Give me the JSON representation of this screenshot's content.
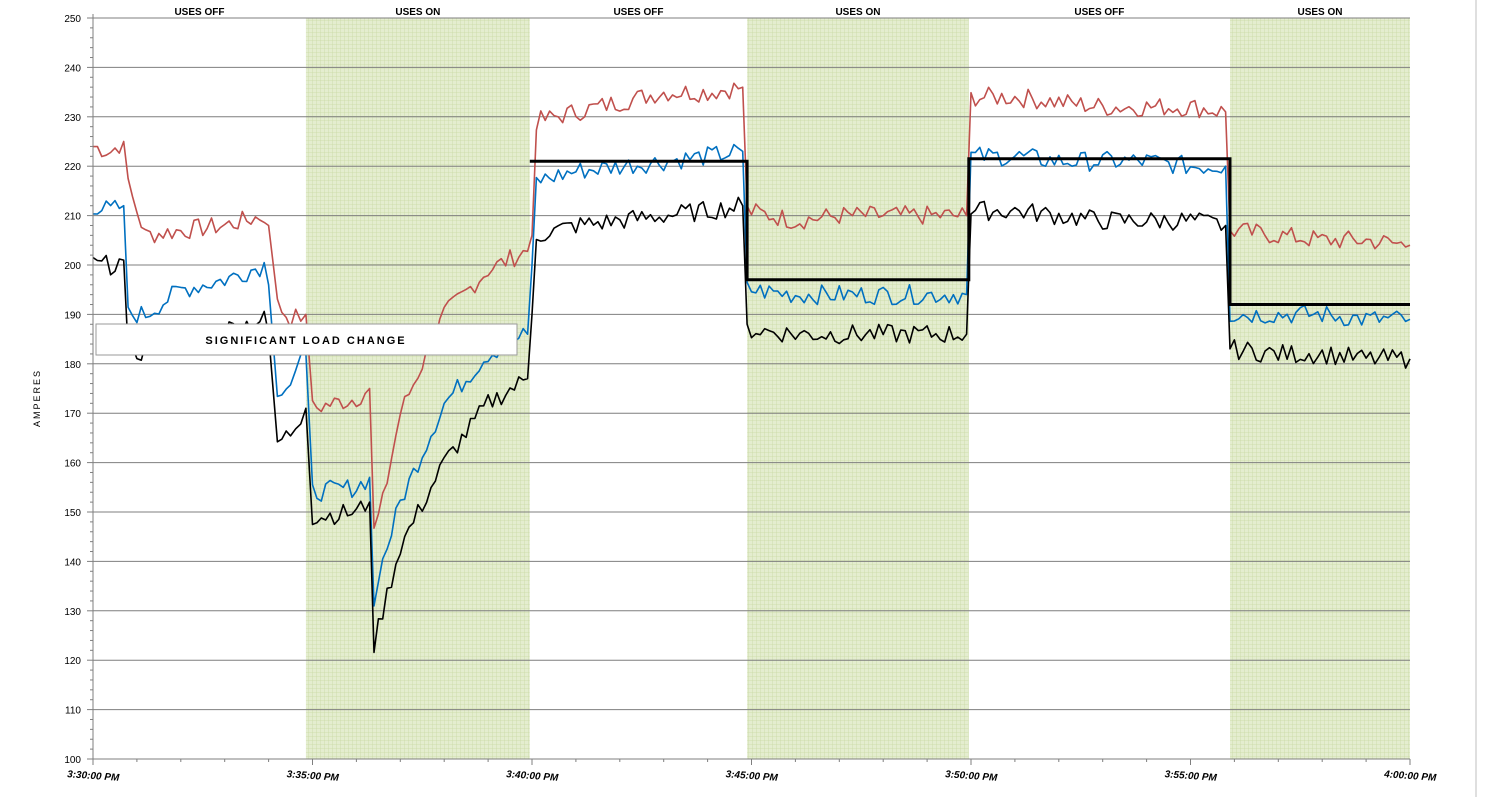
{
  "chart_data": {
    "type": "line",
    "title": "",
    "ylabel": "AMPERES",
    "xlabel": "",
    "ylim": [
      100,
      250
    ],
    "xlim_min": [
      0,
      30
    ],
    "y_ticks": [
      100,
      110,
      120,
      130,
      140,
      150,
      160,
      170,
      180,
      190,
      200,
      210,
      220,
      230,
      240,
      250
    ],
    "x_ticks": [
      {
        "t": 0,
        "label": "3:30:00 PM"
      },
      {
        "t": 5,
        "label": "3:35:00 PM"
      },
      {
        "t": 10,
        "label": "3:40:00 PM"
      },
      {
        "t": 15,
        "label": "3:45:00 PM"
      },
      {
        "t": 20,
        "label": "3:50:00 PM"
      },
      {
        "t": 25,
        "label": "3:55:00 PM"
      },
      {
        "t": 30,
        "label": "4:00:00 PM"
      }
    ],
    "bands": [
      {
        "start": 0.0,
        "end": 4.85,
        "label": "USES OFF",
        "shaded": false
      },
      {
        "start": 4.85,
        "end": 9.95,
        "label": "USES ON",
        "shaded": true
      },
      {
        "start": 9.95,
        "end": 14.9,
        "label": "USES OFF",
        "shaded": false
      },
      {
        "start": 14.9,
        "end": 19.95,
        "label": "USES ON",
        "shaded": true
      },
      {
        "start": 19.95,
        "end": 25.9,
        "label": "USES OFF",
        "shaded": false
      },
      {
        "start": 25.9,
        "end": 30.0,
        "label": "USES ON",
        "shaded": true
      }
    ],
    "annotation": "SIGNIFICANT LOAD CHANGE",
    "grid": true,
    "colors": {
      "red": "#c0504d",
      "blue": "#0070c0",
      "black": "#000000",
      "shade": "#d7e4bd",
      "avg": "#000000"
    },
    "series": [
      {
        "color": "#c0504d",
        "points": [
          [
            0,
            224
          ],
          [
            0.4,
            223
          ],
          [
            0.7,
            225
          ],
          [
            0.8,
            216
          ],
          [
            1.2,
            206
          ],
          [
            2,
            207
          ],
          [
            3,
            208
          ],
          [
            3.9,
            210
          ],
          [
            4.0,
            208
          ],
          [
            4.2,
            192
          ],
          [
            4.5,
            189
          ],
          [
            4.85,
            190
          ],
          [
            5.0,
            171
          ],
          [
            6.0,
            173
          ],
          [
            6.3,
            175
          ],
          [
            6.4,
            146
          ],
          [
            6.6,
            152
          ],
          [
            7.0,
            170
          ],
          [
            8.0,
            190
          ],
          [
            9.0,
            199
          ],
          [
            9.9,
            203
          ],
          [
            10.0,
            206
          ],
          [
            10.1,
            229
          ],
          [
            11,
            231
          ],
          [
            12,
            233
          ],
          [
            13,
            235
          ],
          [
            14,
            235
          ],
          [
            14.8,
            236
          ],
          [
            14.9,
            211
          ],
          [
            16,
            209
          ],
          [
            17,
            210
          ],
          [
            18,
            210
          ],
          [
            19.9,
            210
          ],
          [
            20.0,
            234
          ],
          [
            21,
            234
          ],
          [
            22,
            233
          ],
          [
            23,
            232
          ],
          [
            24,
            232
          ],
          [
            25,
            232
          ],
          [
            25.8,
            231
          ],
          [
            25.9,
            207
          ],
          [
            27,
            206
          ],
          [
            28,
            205
          ],
          [
            29,
            205
          ],
          [
            30,
            204
          ]
        ]
      },
      {
        "color": "#0070c0",
        "points": [
          [
            0,
            212
          ],
          [
            0.4,
            211
          ],
          [
            0.7,
            212
          ],
          [
            0.8,
            190
          ],
          [
            1.2,
            190
          ],
          [
            2,
            195
          ],
          [
            3,
            197
          ],
          [
            3.9,
            200
          ],
          [
            4.0,
            196
          ],
          [
            4.2,
            175
          ],
          [
            4.5,
            176
          ],
          [
            4.85,
            182
          ],
          [
            5.0,
            154
          ],
          [
            6.0,
            155
          ],
          [
            6.3,
            157
          ],
          [
            6.4,
            131
          ],
          [
            6.6,
            140
          ],
          [
            7.0,
            152
          ],
          [
            8.0,
            172
          ],
          [
            9.0,
            182
          ],
          [
            9.9,
            186
          ],
          [
            10.0,
            200
          ],
          [
            10.1,
            217
          ],
          [
            11,
            219
          ],
          [
            12,
            220
          ],
          [
            13,
            221
          ],
          [
            14,
            222
          ],
          [
            14.8,
            223
          ],
          [
            14.9,
            195
          ],
          [
            16,
            194
          ],
          [
            17,
            194
          ],
          [
            18,
            194
          ],
          [
            19.9,
            194
          ],
          [
            20.0,
            222
          ],
          [
            21,
            222
          ],
          [
            22,
            221
          ],
          [
            23,
            221
          ],
          [
            24,
            221
          ],
          [
            25,
            220
          ],
          [
            25.8,
            220
          ],
          [
            25.9,
            190
          ],
          [
            27,
            190
          ],
          [
            28,
            190
          ],
          [
            29,
            189
          ],
          [
            30,
            189
          ]
        ]
      },
      {
        "color": "#000000",
        "points": [
          [
            0,
            200
          ],
          [
            0.4,
            200
          ],
          [
            0.7,
            201
          ],
          [
            0.8,
            181
          ],
          [
            1.2,
            183
          ],
          [
            2,
            185
          ],
          [
            3,
            187
          ],
          [
            3.9,
            189
          ],
          [
            4.0,
            186
          ],
          [
            4.2,
            164
          ],
          [
            4.5,
            166
          ],
          [
            4.85,
            171
          ],
          [
            5.0,
            149
          ],
          [
            6.0,
            150
          ],
          [
            6.3,
            152
          ],
          [
            6.4,
            123
          ],
          [
            6.6,
            130
          ],
          [
            7.0,
            143
          ],
          [
            8.0,
            160
          ],
          [
            9.0,
            172
          ],
          [
            9.9,
            177
          ],
          [
            10.0,
            190
          ],
          [
            10.1,
            206
          ],
          [
            11,
            208
          ],
          [
            12,
            209
          ],
          [
            13,
            210
          ],
          [
            14,
            211
          ],
          [
            14.8,
            212
          ],
          [
            14.9,
            187
          ],
          [
            16,
            186
          ],
          [
            17,
            186
          ],
          [
            18,
            186
          ],
          [
            19.9,
            186
          ],
          [
            20.0,
            211
          ],
          [
            21,
            211
          ],
          [
            22,
            210
          ],
          [
            23,
            209
          ],
          [
            24,
            209
          ],
          [
            25,
            209
          ],
          [
            25.8,
            208
          ],
          [
            25.9,
            183
          ],
          [
            27,
            182
          ],
          [
            28,
            182
          ],
          [
            29,
            181
          ],
          [
            30,
            181
          ]
        ]
      },
      {
        "color": "#000000",
        "avg": true,
        "points": [
          [
            9.95,
            221
          ],
          [
            14.9,
            221
          ],
          [
            14.9,
            197
          ],
          [
            19.95,
            197
          ],
          [
            19.95,
            221.5
          ],
          [
            25.9,
            221.5
          ],
          [
            25.9,
            192
          ],
          [
            30,
            192
          ]
        ]
      }
    ]
  }
}
